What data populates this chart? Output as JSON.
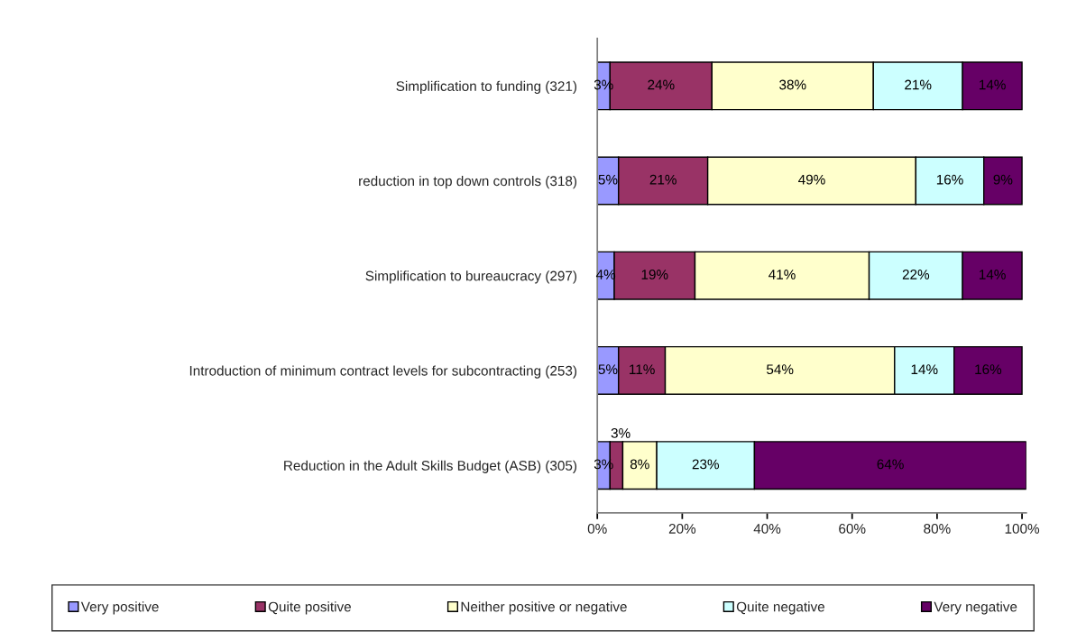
{
  "chart_data": {
    "type": "bar",
    "orientation": "horizontal",
    "stacked": true,
    "grid": false,
    "legend": "bottom",
    "categories": [
      "Simplification to funding (321)",
      "reduction in top down controls (318)",
      "Simplification to bureaucracy (297)",
      "Introduction of minimum contract levels for subcontracting (253)",
      "Reduction in the Adult Skills Budget (ASB) (305)"
    ],
    "series": [
      {
        "name": "Very positive",
        "color": "#9999ff",
        "values": [
          3,
          5,
          4,
          5,
          3
        ],
        "value_labels": [
          "3%",
          "5%",
          "4%",
          "5%",
          "3%"
        ]
      },
      {
        "name": "Quite positive",
        "color": "#993366",
        "values": [
          24,
          21,
          19,
          11,
          3
        ],
        "value_labels": [
          "24%",
          "21%",
          "19%",
          "11%",
          "3%"
        ]
      },
      {
        "name": "Neither positive or negative",
        "color": "#ffffcc",
        "values": [
          38,
          49,
          41,
          54,
          8
        ],
        "value_labels": [
          "38%",
          "49%",
          "41%",
          "54%",
          "8%"
        ]
      },
      {
        "name": "Quite negative",
        "color": "#ccffff",
        "values": [
          21,
          16,
          22,
          14,
          23
        ],
        "value_labels": [
          "21%",
          "16%",
          "22%",
          "14%",
          "23%"
        ]
      },
      {
        "name": "Very negative",
        "color": "#660066",
        "values": [
          14,
          9,
          14,
          16,
          64
        ],
        "value_labels": [
          "14%",
          "9%",
          "14%",
          "16%",
          "64%"
        ]
      }
    ],
    "xlim": [
      0,
      101
    ],
    "xticks": [
      {
        "value": 0,
        "label": "0%"
      },
      {
        "value": 20,
        "label": "20%"
      },
      {
        "value": 40,
        "label": "40%"
      },
      {
        "value": 60,
        "label": "60%"
      },
      {
        "value": 80,
        "label": "80%"
      },
      {
        "value": 100,
        "label": "100%"
      }
    ]
  }
}
